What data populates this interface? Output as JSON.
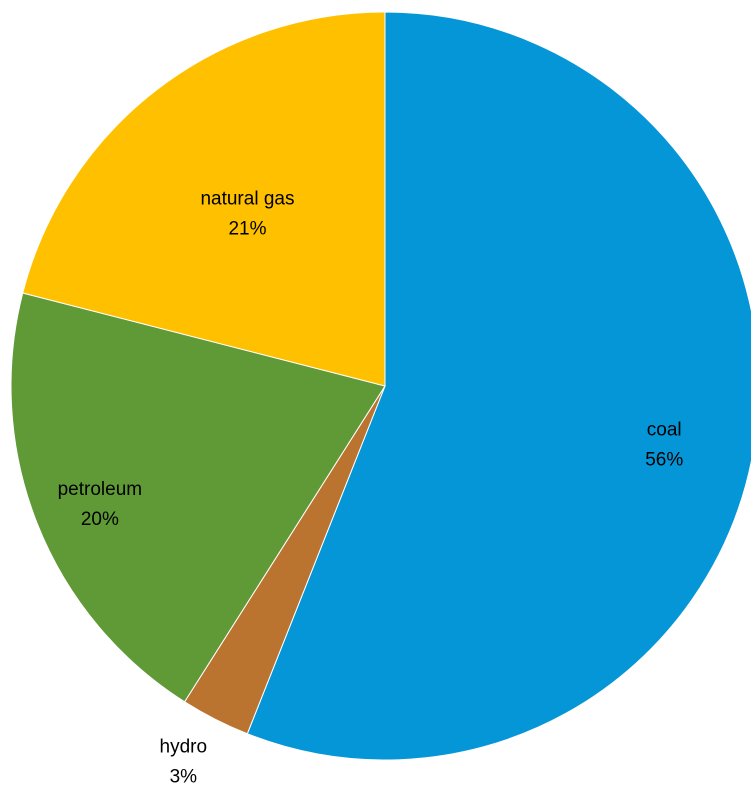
{
  "chart_data": {
    "type": "pie",
    "title": "",
    "start_angle_deg": 0,
    "direction": "clockwise",
    "slices": [
      {
        "name": "coal",
        "value": 56,
        "label_value": "56%",
        "color": "#0596D8"
      },
      {
        "name": "hydro",
        "value": 3,
        "label_value": "3%",
        "color": "#BB7430"
      },
      {
        "name": "petroleum",
        "value": 20,
        "label_value": "20%",
        "color": "#5F9A37"
      },
      {
        "name": "natural gas",
        "value": 21,
        "label_value": "21%",
        "color": "#FFC000"
      }
    ],
    "legend": "none",
    "data_labels": "category name and percentage"
  }
}
